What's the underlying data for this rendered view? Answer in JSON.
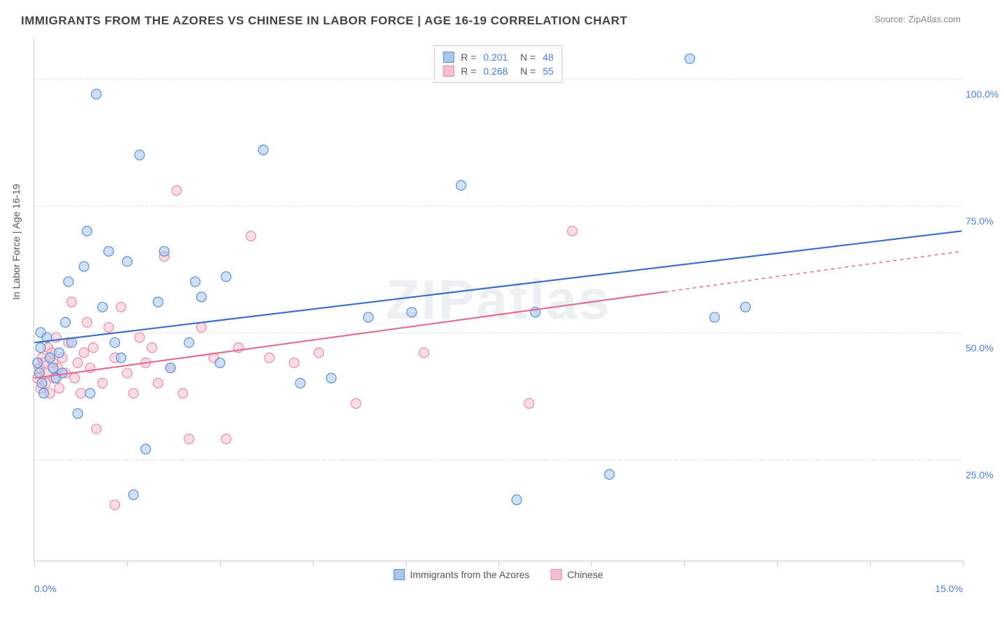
{
  "title": "IMMIGRANTS FROM THE AZORES VS CHINESE IN LABOR FORCE | AGE 16-19 CORRELATION CHART",
  "source": "Source: ZipAtlas.com",
  "watermark": "ZIPatlas",
  "ylabel": "In Labor Force | Age 16-19",
  "chart": {
    "type": "scatter",
    "xlim": [
      0,
      15
    ],
    "ylim": [
      5,
      108
    ],
    "xtick_positions": [
      0,
      1.5,
      3.0,
      4.5,
      6.0,
      7.5,
      9.0,
      10.5,
      12.0,
      13.5,
      15.0
    ],
    "xtick_labels_shown": {
      "0": "0.0%",
      "15": "15.0%"
    },
    "ytick_positions": [
      25,
      50,
      75,
      100
    ],
    "ytick_labels": [
      "25.0%",
      "50.0%",
      "75.0%",
      "100.0%"
    ],
    "grid_color": "#dddddd",
    "axis_color": "#cccccc",
    "background_color": "#ffffff",
    "marker_radius": 7,
    "marker_opacity": 0.55,
    "marker_stroke_width": 1.2,
    "series": [
      {
        "name": "Immigrants from the Azores",
        "color_stroke": "#5b8fd6",
        "color_fill": "#a8c5ec",
        "R": "0.201",
        "N": "48",
        "trend": {
          "x1": 0,
          "y1": 48,
          "x2": 15,
          "y2": 70,
          "solid_until_x": 15
        },
        "points": [
          [
            0.05,
            44
          ],
          [
            0.08,
            42
          ],
          [
            0.1,
            50
          ],
          [
            0.1,
            47
          ],
          [
            0.12,
            40
          ],
          [
            0.15,
            38
          ],
          [
            0.2,
            49
          ],
          [
            0.25,
            45
          ],
          [
            0.3,
            43
          ],
          [
            0.35,
            41
          ],
          [
            0.4,
            46
          ],
          [
            0.45,
            42
          ],
          [
            0.5,
            52
          ],
          [
            0.55,
            60
          ],
          [
            0.6,
            48
          ],
          [
            0.7,
            34
          ],
          [
            0.8,
            63
          ],
          [
            0.85,
            70
          ],
          [
            0.9,
            38
          ],
          [
            1.0,
            97
          ],
          [
            1.1,
            55
          ],
          [
            1.2,
            66
          ],
          [
            1.3,
            48
          ],
          [
            1.4,
            45
          ],
          [
            1.5,
            64
          ],
          [
            1.6,
            18
          ],
          [
            1.7,
            85
          ],
          [
            1.8,
            27
          ],
          [
            2.0,
            56
          ],
          [
            2.1,
            66
          ],
          [
            2.2,
            43
          ],
          [
            2.5,
            48
          ],
          [
            2.6,
            60
          ],
          [
            2.7,
            57
          ],
          [
            3.1,
            61
          ],
          [
            3.0,
            44
          ],
          [
            3.7,
            86
          ],
          [
            4.3,
            40
          ],
          [
            4.8,
            41
          ],
          [
            5.4,
            53
          ],
          [
            6.1,
            54
          ],
          [
            6.9,
            79
          ],
          [
            7.8,
            17
          ],
          [
            8.1,
            54
          ],
          [
            9.3,
            22
          ],
          [
            10.6,
            104
          ],
          [
            11.0,
            53
          ],
          [
            11.5,
            55
          ]
        ]
      },
      {
        "name": "Chinese",
        "color_stroke": "#e78fa6",
        "color_fill": "#f5c0cd",
        "R": "0.268",
        "N": "55",
        "trend": {
          "x1": 0,
          "y1": 41,
          "x2": 15,
          "y2": 66,
          "solid_until_x": 10.2
        },
        "points": [
          [
            0.05,
            41
          ],
          [
            0.08,
            43
          ],
          [
            0.1,
            39
          ],
          [
            0.12,
            45
          ],
          [
            0.15,
            44
          ],
          [
            0.18,
            40
          ],
          [
            0.2,
            42
          ],
          [
            0.22,
            47
          ],
          [
            0.25,
            38
          ],
          [
            0.28,
            46
          ],
          [
            0.3,
            44
          ],
          [
            0.32,
            41
          ],
          [
            0.35,
            49
          ],
          [
            0.38,
            43
          ],
          [
            0.4,
            39
          ],
          [
            0.45,
            45
          ],
          [
            0.5,
            42
          ],
          [
            0.55,
            48
          ],
          [
            0.6,
            56
          ],
          [
            0.65,
            41
          ],
          [
            0.7,
            44
          ],
          [
            0.75,
            38
          ],
          [
            0.8,
            46
          ],
          [
            0.85,
            52
          ],
          [
            0.9,
            43
          ],
          [
            0.95,
            47
          ],
          [
            1.0,
            31
          ],
          [
            1.1,
            40
          ],
          [
            1.2,
            51
          ],
          [
            1.3,
            45
          ],
          [
            1.4,
            55
          ],
          [
            1.5,
            42
          ],
          [
            1.6,
            38
          ],
          [
            1.7,
            49
          ],
          [
            1.8,
            44
          ],
          [
            1.9,
            47
          ],
          [
            2.0,
            40
          ],
          [
            2.1,
            65
          ],
          [
            2.2,
            43
          ],
          [
            2.3,
            78
          ],
          [
            2.4,
            38
          ],
          [
            2.5,
            29
          ],
          [
            1.3,
            16
          ],
          [
            2.7,
            51
          ],
          [
            2.9,
            45
          ],
          [
            3.1,
            29
          ],
          [
            3.3,
            47
          ],
          [
            3.5,
            69
          ],
          [
            3.8,
            45
          ],
          [
            4.2,
            44
          ],
          [
            4.6,
            46
          ],
          [
            5.2,
            36
          ],
          [
            6.3,
            46
          ],
          [
            8.0,
            36
          ],
          [
            8.7,
            70
          ]
        ]
      }
    ],
    "legend_bottom": [
      {
        "label": "Immigrants from the Azores",
        "stroke": "#5b8fd6",
        "fill": "#a8c5ec"
      },
      {
        "label": "Chinese",
        "stroke": "#e78fa6",
        "fill": "#f5c0cd"
      }
    ]
  }
}
